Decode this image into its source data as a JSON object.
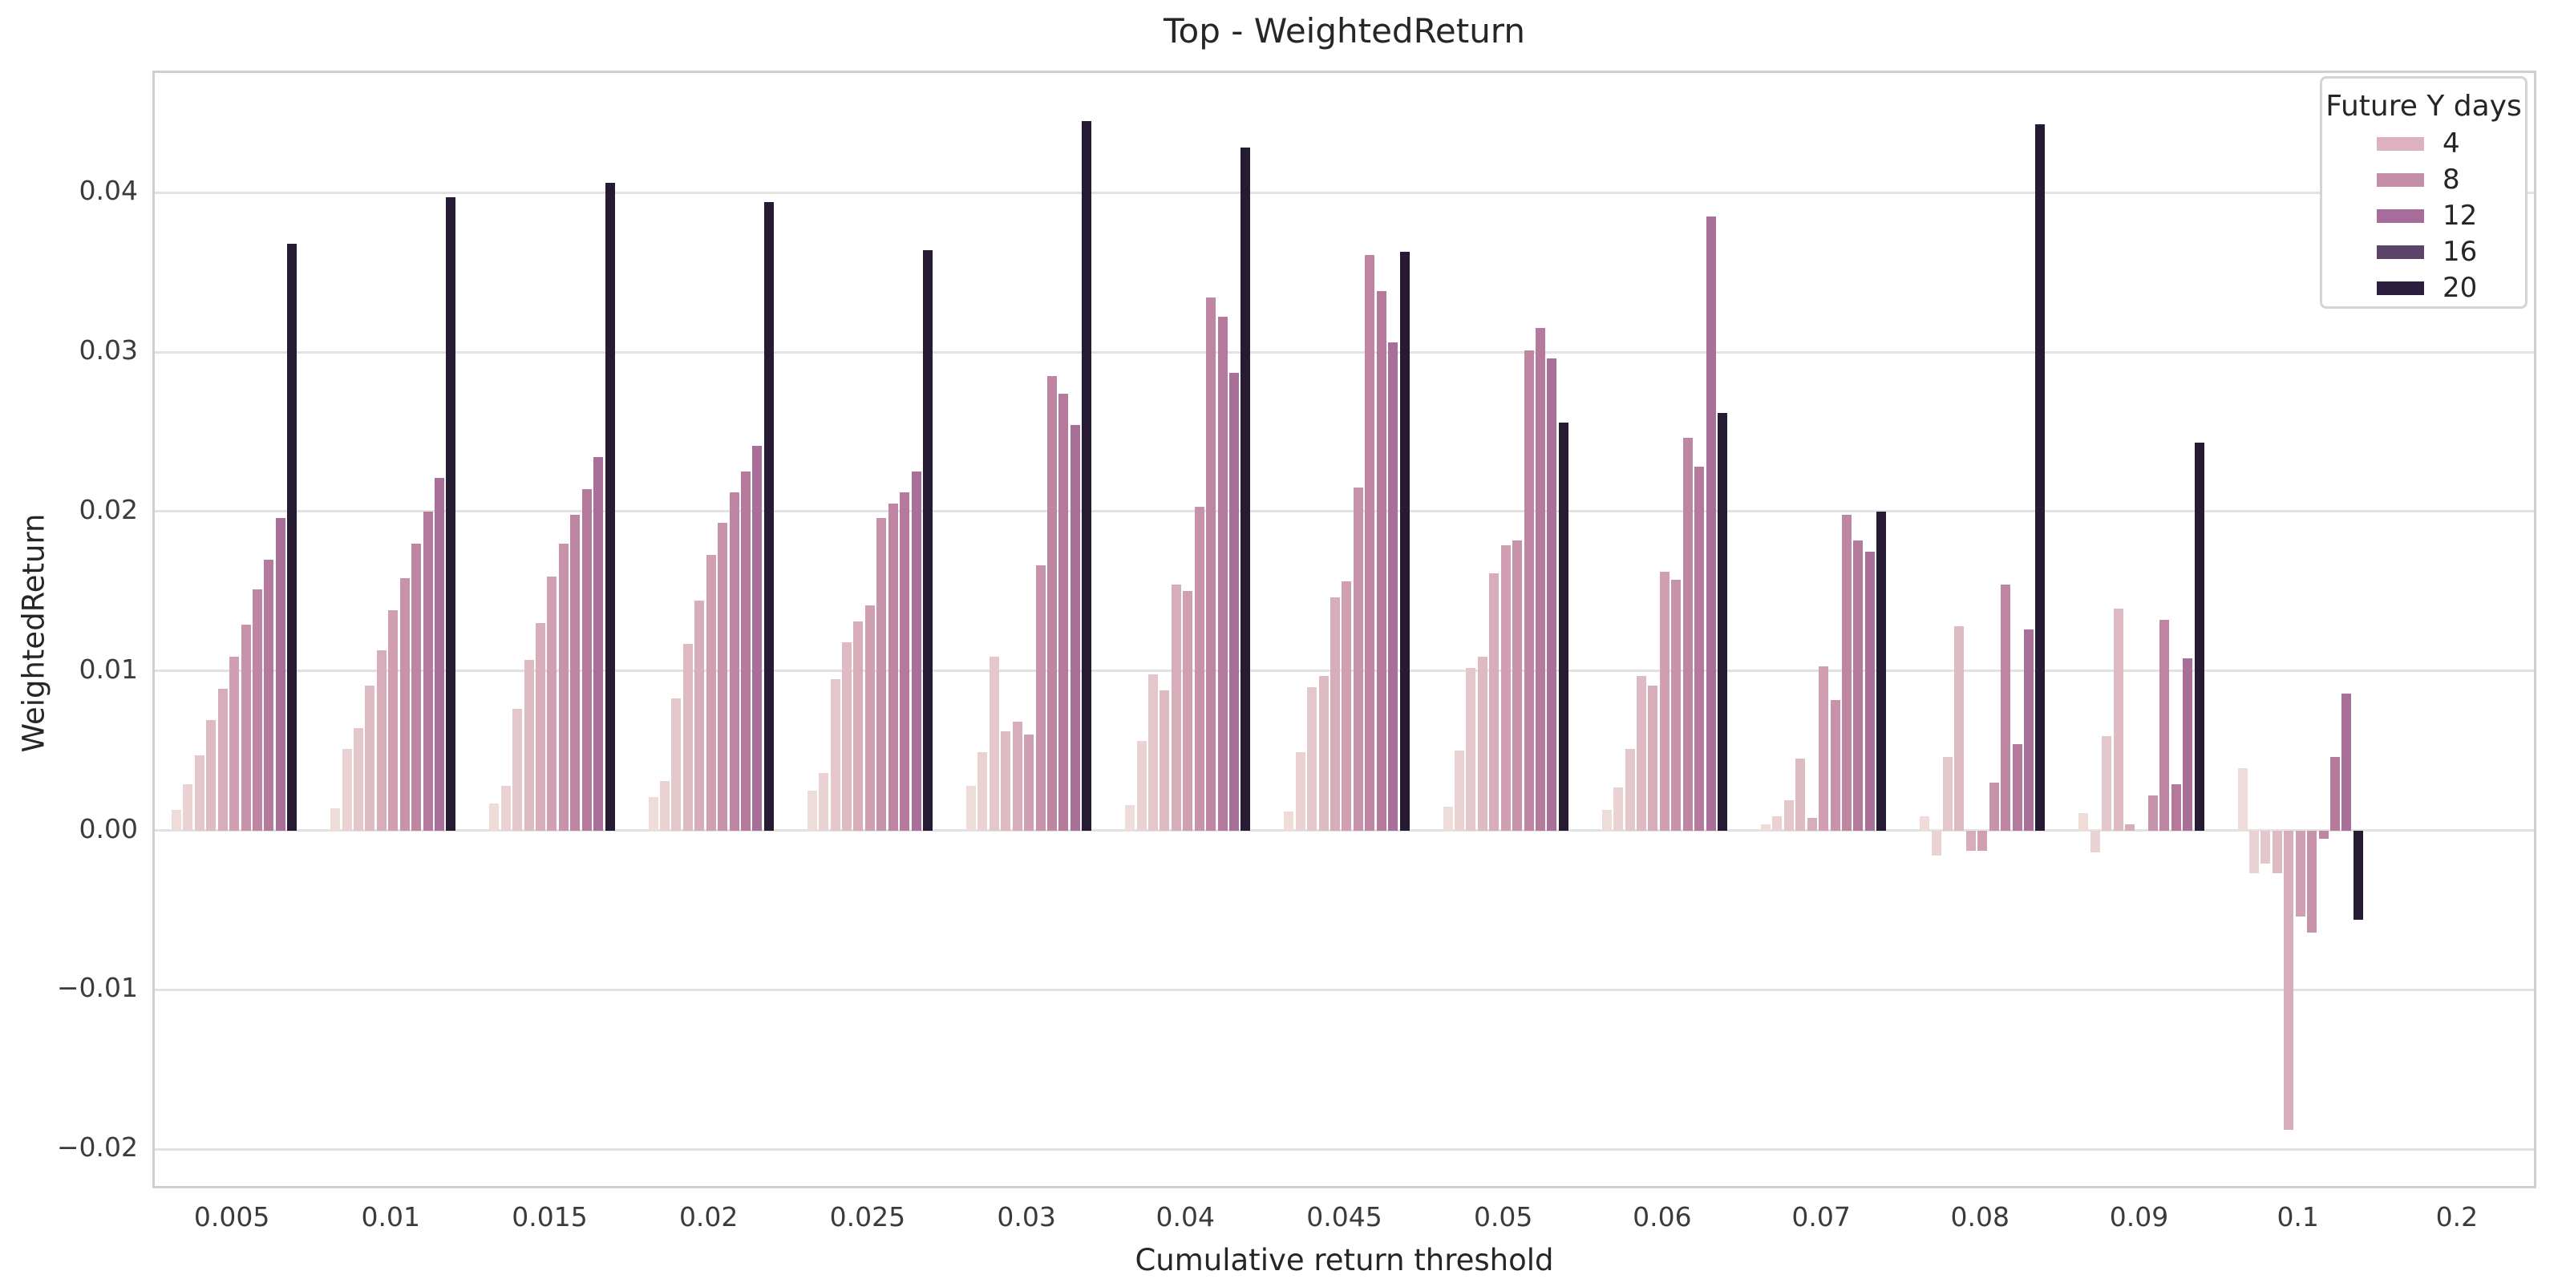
{
  "figure": {
    "title": "Top - WeightedReturn",
    "xlabel": "Cumulative return threshold",
    "ylabel": "WeightedReturn",
    "background": "#ffffff",
    "gridline_color": "#e2e2e2",
    "spine_color": "#cfcfcf"
  },
  "legend": {
    "title": "Future Y days",
    "items": [
      {
        "label": "4",
        "color": "#ddb1bd"
      },
      {
        "label": "8",
        "color": "#c48ea7"
      },
      {
        "label": "12",
        "color": "#a76d9a"
      },
      {
        "label": "16",
        "color": "#5b4369"
      },
      {
        "label": "20",
        "color": "#2b1e3e"
      }
    ]
  },
  "chart_data": {
    "type": "bar",
    "title": "Top - WeightedReturn",
    "xlabel": "Cumulative return threshold",
    "ylabel": "WeightedReturn",
    "legend_position": "upper right",
    "grid": true,
    "n_bars_per_group": 11,
    "ylim": [
      -0.0226,
      0.0475
    ],
    "yticks": [
      0.04,
      0.03,
      0.02,
      0.01,
      0.0,
      -0.01,
      -0.02
    ],
    "ytick_labels": [
      "0.04",
      "0.03",
      "0.02",
      "0.01",
      "0.00",
      "−0.01",
      "−0.02"
    ],
    "palette": [
      "#eedcd9",
      "#ead2d2",
      "#e4c7ca",
      "#debac2",
      "#d7adba",
      "#d0a0b2",
      "#c793aa",
      "#bf86a3",
      "#b5799c",
      "#a86f99",
      "#271b34"
    ],
    "categories": [
      "0.005",
      "0.01",
      "0.015",
      "0.02",
      "0.025",
      "0.03",
      "0.04",
      "0.045",
      "0.05",
      "0.06",
      "0.07",
      "0.08",
      "0.09",
      "0.1",
      "0.2"
    ],
    "series_note": "11 bars per category shaded light-to-dark (last bar darkest, legend samples 4/8/12/16/20)",
    "values": [
      [
        0.0013,
        0.0029,
        0.0047,
        0.0069,
        0.0089,
        0.0109,
        0.0129,
        0.0151,
        0.017,
        0.0196,
        0.0368
      ],
      [
        0.0014,
        0.0051,
        0.0064,
        0.0091,
        0.0113,
        0.0138,
        0.0158,
        0.018,
        0.02,
        0.0221,
        0.0397
      ],
      [
        0.0017,
        0.0028,
        0.0076,
        0.0107,
        0.013,
        0.0159,
        0.018,
        0.0198,
        0.0214,
        0.0234,
        0.0406
      ],
      [
        0.0021,
        0.0031,
        0.0083,
        0.0117,
        0.0144,
        0.0173,
        0.0193,
        0.0212,
        0.0225,
        0.0241,
        0.0394
      ],
      [
        0.0025,
        0.0036,
        0.0095,
        0.0118,
        0.0131,
        0.0141,
        0.0196,
        0.0205,
        0.0212,
        0.0225,
        0.0364
      ],
      [
        0.0028,
        0.0049,
        0.0109,
        0.0062,
        0.0068,
        0.006,
        0.0166,
        0.0285,
        0.0274,
        0.0254,
        0.0445
      ],
      [
        0.0016,
        0.0056,
        0.0098,
        0.0088,
        0.0154,
        0.015,
        0.0203,
        0.0334,
        0.0322,
        0.0287,
        0.0428
      ],
      [
        0.0012,
        0.0049,
        0.009,
        0.0097,
        0.0146,
        0.0156,
        0.0215,
        0.0361,
        0.0338,
        0.0306,
        0.0363
      ],
      [
        0.0015,
        0.005,
        0.0102,
        0.0109,
        0.0161,
        0.0179,
        0.0182,
        0.0301,
        0.0315,
        0.0296,
        0.0256
      ],
      [
        0.0013,
        0.0027,
        0.0051,
        0.0097,
        0.0091,
        0.0162,
        0.0157,
        0.0246,
        0.0228,
        0.0385,
        0.0262
      ],
      [
        0.0004,
        0.0009,
        0.0019,
        0.0045,
        0.0008,
        0.0103,
        0.0082,
        0.0198,
        0.0182,
        0.0175,
        0.02
      ],
      [
        0.0009,
        -0.0016,
        0.0046,
        0.0128,
        -0.0013,
        -0.0013,
        0.003,
        0.0154,
        0.0054,
        0.0126,
        0.0443
      ],
      [
        0.0011,
        -0.0014,
        0.0059,
        0.0139,
        0.0004,
        0.0,
        0.0022,
        0.0132,
        0.0029,
        0.0108,
        0.0243
      ],
      [
        0.0039,
        -0.0027,
        -0.0021,
        -0.0027,
        -0.0188,
        -0.0054,
        -0.0064,
        -0.0005,
        0.0046,
        0.0086,
        -0.0056
      ],
      [
        0.0,
        0.0,
        0.0,
        0.0,
        0.0,
        0.0,
        0.0,
        0.0,
        0.0,
        0.0,
        0.0
      ]
    ]
  }
}
